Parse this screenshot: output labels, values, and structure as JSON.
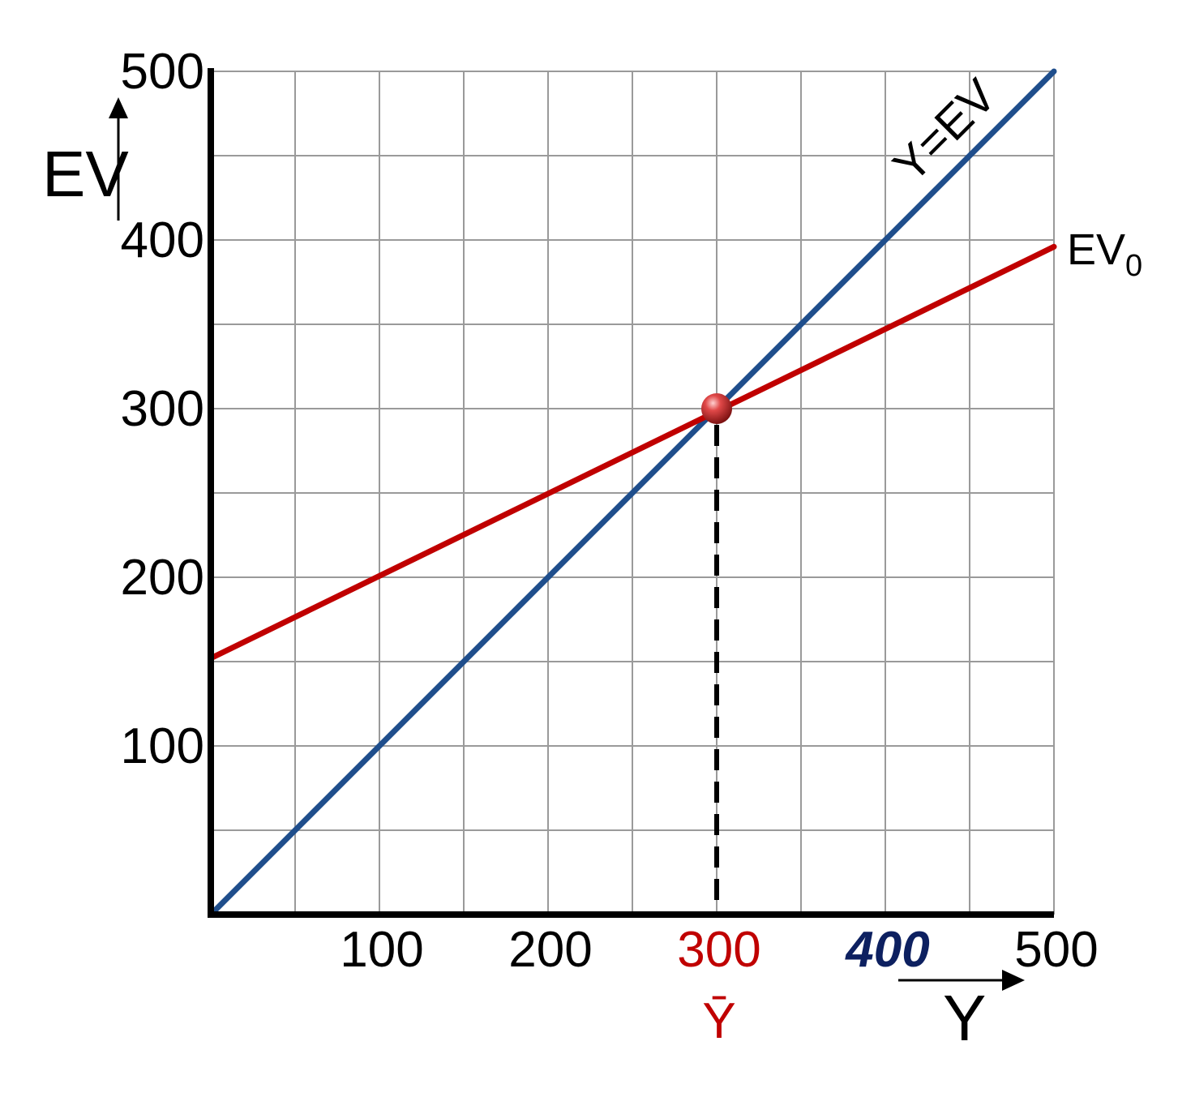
{
  "chart_data": {
    "type": "line",
    "xlabel": "Y",
    "ylabel": "EV",
    "xlim": [
      0,
      500
    ],
    "ylim": [
      0,
      500
    ],
    "grid": true,
    "x_ticks": [
      100,
      200,
      300,
      400,
      500
    ],
    "y_ticks": [
      100,
      200,
      300,
      400,
      500
    ],
    "x_tick_labels": [
      "100",
      "200",
      "300",
      "400",
      "500"
    ],
    "y_tick_labels": [
      "100",
      "200",
      "300",
      "400",
      "500"
    ],
    "series": [
      {
        "name": "Y=EV",
        "color": "#1f4e8c",
        "x": [
          0,
          500
        ],
        "y": [
          0,
          500
        ]
      },
      {
        "name": "EV",
        "subscript": "0",
        "color": "#c00000",
        "x": [
          0,
          500
        ],
        "y": [
          152,
          396
        ]
      }
    ],
    "equilibrium": {
      "x": 300,
      "y": 300,
      "label": "Ȳ",
      "color": "#c00000"
    },
    "highlight_ticks": {
      "300": "#c00000",
      "400": "#0d2060"
    }
  }
}
